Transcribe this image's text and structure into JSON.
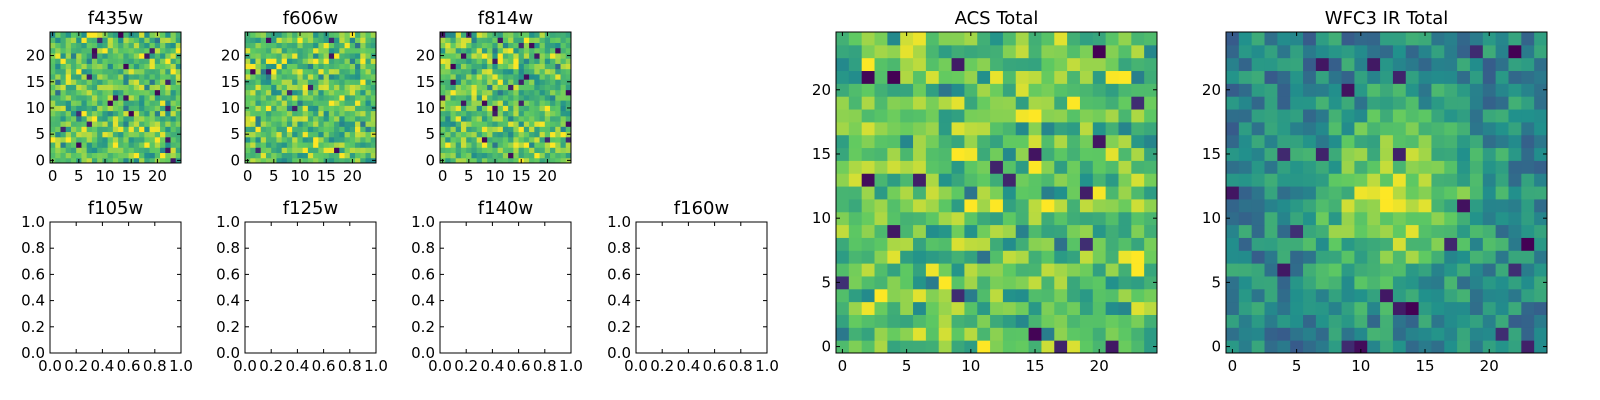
{
  "chart_data": [
    {
      "type": "heatmap",
      "title": "f435w",
      "colormap": "viridis",
      "grid": "25x25 pixels (noise image)",
      "x_ticks": [
        "0",
        "5",
        "10",
        "15",
        "20"
      ],
      "y_ticks": [
        "0",
        "5",
        "10",
        "15",
        "20"
      ],
      "xlim": [
        -0.5,
        24.5
      ],
      "ylim": [
        -0.5,
        24.5
      ]
    },
    {
      "type": "heatmap",
      "title": "f606w",
      "colormap": "viridis",
      "grid": "25x25 pixels (noise image)",
      "x_ticks": [
        "0",
        "5",
        "10",
        "15",
        "20"
      ],
      "y_ticks": [
        "0",
        "5",
        "10",
        "15",
        "20"
      ],
      "xlim": [
        -0.5,
        24.5
      ],
      "ylim": [
        -0.5,
        24.5
      ]
    },
    {
      "type": "heatmap",
      "title": "f814w",
      "colormap": "viridis",
      "grid": "25x25 pixels (noise image)",
      "x_ticks": [
        "0",
        "5",
        "10",
        "15",
        "20"
      ],
      "y_ticks": [
        "0",
        "5",
        "10",
        "15",
        "20"
      ],
      "xlim": [
        -0.5,
        24.5
      ],
      "ylim": [
        -0.5,
        24.5
      ]
    },
    {
      "type": "empty",
      "title": "f105w",
      "x_ticks": [
        "0.0",
        "0.2",
        "0.4",
        "0.6",
        "0.8",
        "1.0"
      ],
      "y_ticks": [
        "0.0",
        "0.2",
        "0.4",
        "0.6",
        "0.8",
        "1.0"
      ],
      "xlim": [
        0,
        1
      ],
      "ylim": [
        0,
        1
      ]
    },
    {
      "type": "empty",
      "title": "f125w",
      "x_ticks": [
        "0.0",
        "0.2",
        "0.4",
        "0.6",
        "0.8",
        "1.0"
      ],
      "y_ticks": [
        "0.0",
        "0.2",
        "0.4",
        "0.6",
        "0.8",
        "1.0"
      ],
      "xlim": [
        0,
        1
      ],
      "ylim": [
        0,
        1
      ]
    },
    {
      "type": "empty",
      "title": "f140w",
      "x_ticks": [
        "0.0",
        "0.2",
        "0.4",
        "0.6",
        "0.8",
        "1.0"
      ],
      "y_ticks": [
        "0.0",
        "0.2",
        "0.4",
        "0.6",
        "0.8",
        "1.0"
      ],
      "xlim": [
        0,
        1
      ],
      "ylim": [
        0,
        1
      ]
    },
    {
      "type": "empty",
      "title": "f160w",
      "x_ticks": [
        "0.0",
        "0.2",
        "0.4",
        "0.6",
        "0.8",
        "1.0"
      ],
      "y_ticks": [
        "0.0",
        "0.2",
        "0.4",
        "0.6",
        "0.8",
        "1.0"
      ],
      "xlim": [
        0,
        1
      ],
      "ylim": [
        0,
        1
      ]
    },
    {
      "type": "heatmap",
      "title": "ACS Total",
      "colormap": "viridis",
      "grid": "25x25 pixels (noise image)",
      "x_ticks": [
        "0",
        "5",
        "10",
        "15",
        "20"
      ],
      "y_ticks": [
        "0",
        "5",
        "10",
        "15",
        "20"
      ],
      "xlim": [
        -0.5,
        24.5
      ],
      "ylim": [
        -0.5,
        24.5
      ]
    },
    {
      "type": "heatmap",
      "title": "WFC3 IR Total",
      "colormap": "viridis",
      "grid": "25x25 pixels (noise image, bright smooth blob near center)",
      "x_ticks": [
        "0",
        "5",
        "10",
        "15",
        "20"
      ],
      "y_ticks": [
        "0",
        "5",
        "10",
        "15",
        "20"
      ],
      "xlim": [
        -0.5,
        24.5
      ],
      "ylim": [
        -0.5,
        24.5
      ]
    }
  ],
  "colors": {
    "viridis": [
      "#440154",
      "#3b528b",
      "#21918c",
      "#5ec962",
      "#fde725"
    ],
    "axes": "#000000",
    "background": "#ffffff"
  }
}
